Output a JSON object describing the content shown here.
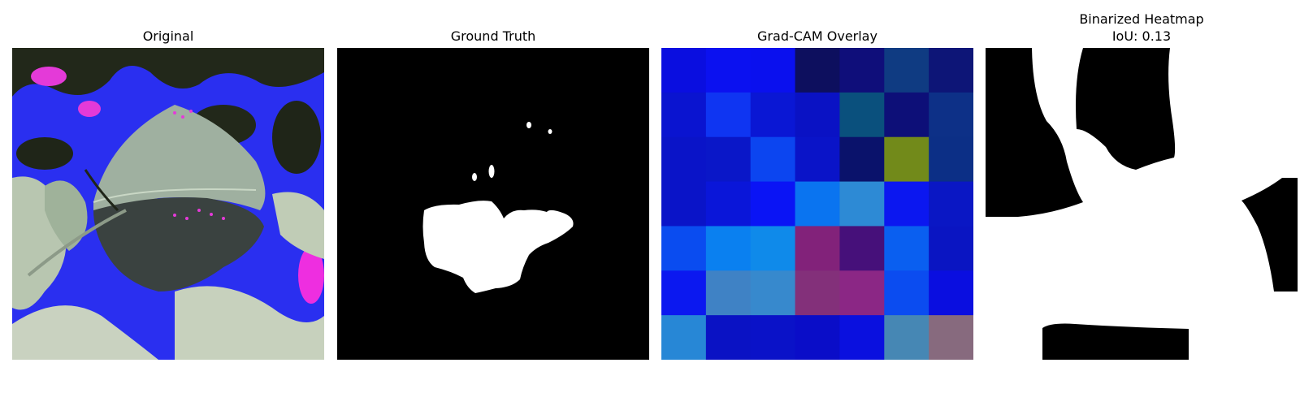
{
  "figure": {
    "panels": [
      {
        "title": "Original"
      },
      {
        "title": "Ground Truth"
      },
      {
        "title": "Grad-CAM Overlay"
      },
      {
        "title": "Binarized Heatmap",
        "subtitle": "IoU: 0.13"
      }
    ],
    "gradcam_grid": [
      [
        "#0a0ee0",
        "#0b11f0",
        "#0a10ee",
        "#0d0f5e",
        "#0f0e7a",
        "#0f3b82",
        "#0d1577"
      ],
      [
        "#0a14d0",
        "#0f35f2",
        "#0a17d4",
        "#0a12c4",
        "#0a507d",
        "#0d0f78",
        "#0d3087"
      ],
      [
        "#0a14c8",
        "#0a17c8",
        "#0c45f0",
        "#0a14c8",
        "#0a126b",
        "#728a1a",
        "#0c2f86"
      ],
      [
        "#0a14c8",
        "#0a16d9",
        "#0a14f5",
        "#0a74f0",
        "#2d8ad5",
        "#0b17f0",
        "#0a17c4"
      ],
      [
        "#0a4cf0",
        "#0a80f0",
        "#0f8aea",
        "#82227a",
        "#46107a",
        "#0a5ff0",
        "#0a15c2"
      ],
      [
        "#0b18f0",
        "#3f82c5",
        "#3789cd",
        "#83307a",
        "#8b2785",
        "#0b4cf0",
        "#0a0ee0"
      ],
      [
        "#2787d6",
        "#0a12c4",
        "#0a12c8",
        "#0a0dc8",
        "#0a10df",
        "#4687b4",
        "#876a7e"
      ]
    ]
  }
}
